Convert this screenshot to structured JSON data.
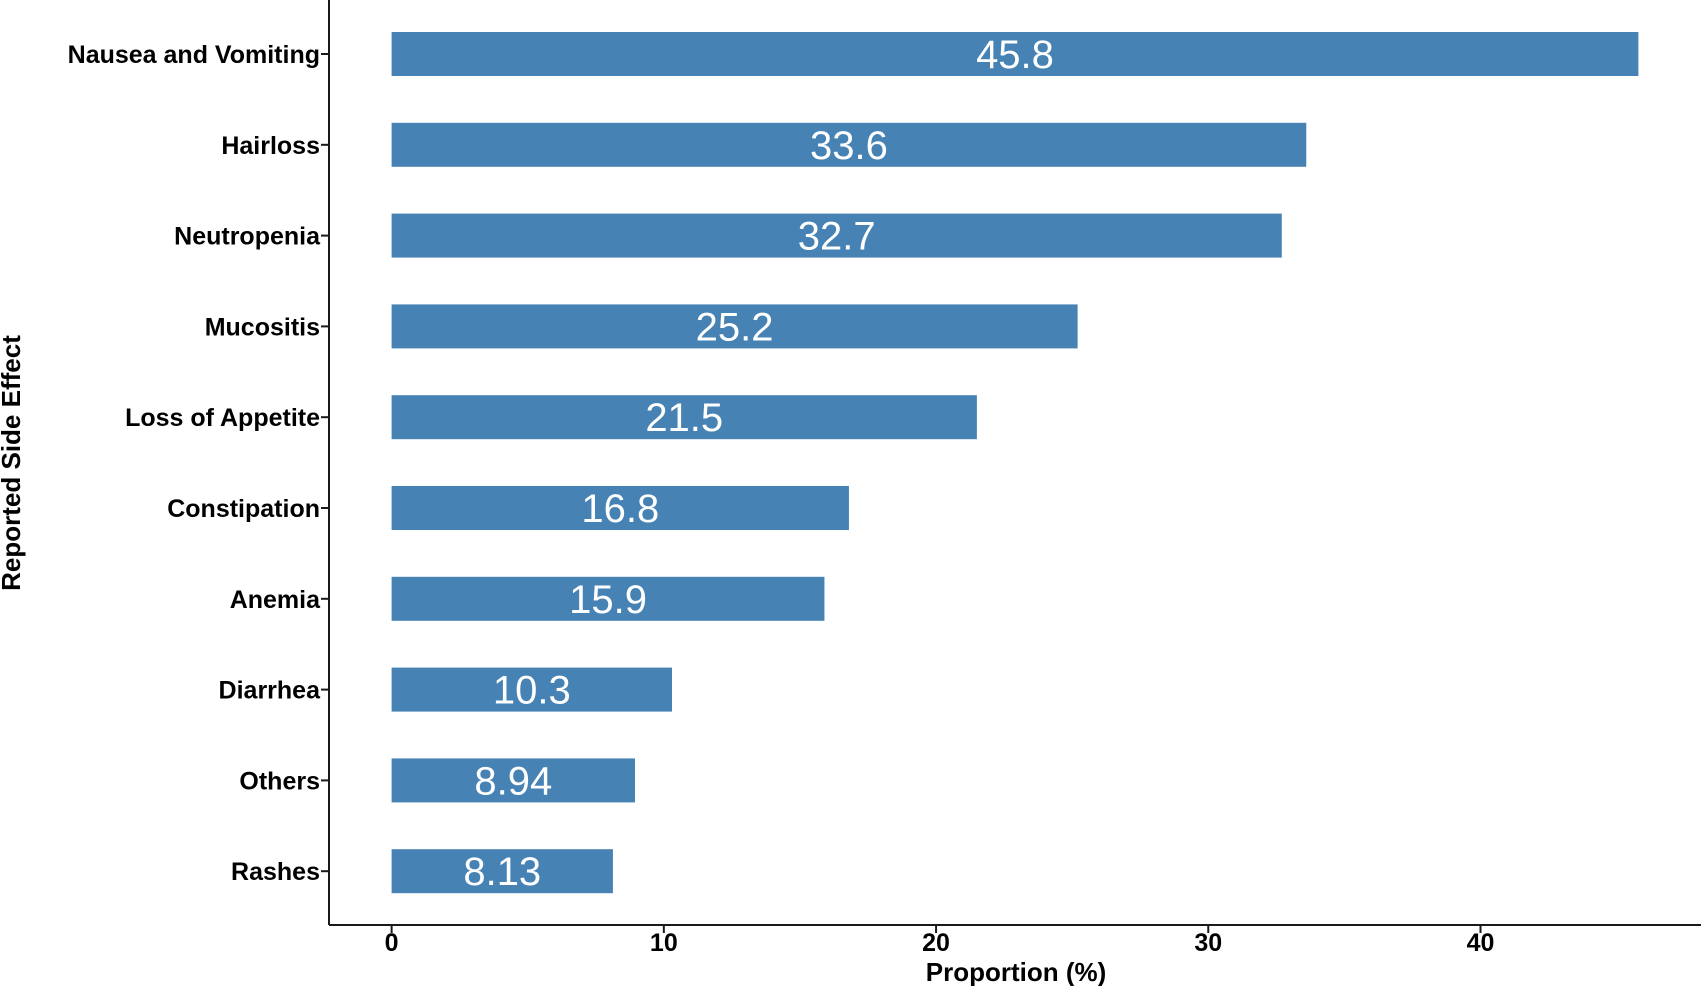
{
  "chart_data": {
    "type": "bar",
    "orientation": "horizontal",
    "categories": [
      "Nausea and Vomiting",
      "Hairloss",
      "Neutropenia",
      "Mucositis",
      "Loss of Appetite",
      "Constipation",
      "Anemia",
      "Diarrhea",
      "Others",
      "Rashes"
    ],
    "values": [
      45.8,
      33.6,
      32.7,
      25.2,
      21.5,
      16.8,
      15.9,
      10.3,
      8.94,
      8.13
    ],
    "value_labels": [
      "45.8",
      "33.6",
      "32.7",
      "25.2",
      "21.5",
      "16.8",
      "15.9",
      "10.3",
      "8.94",
      "8.13"
    ],
    "xlabel": "Proportion (%)",
    "ylabel": "Reported Side Effect",
    "xticks": [
      0,
      10,
      20,
      30,
      40
    ],
    "xlim": [
      -2.3,
      48.1
    ],
    "grid": false,
    "legend": "none",
    "bar_color": "#4682b4",
    "label_color": "#ffffff"
  }
}
